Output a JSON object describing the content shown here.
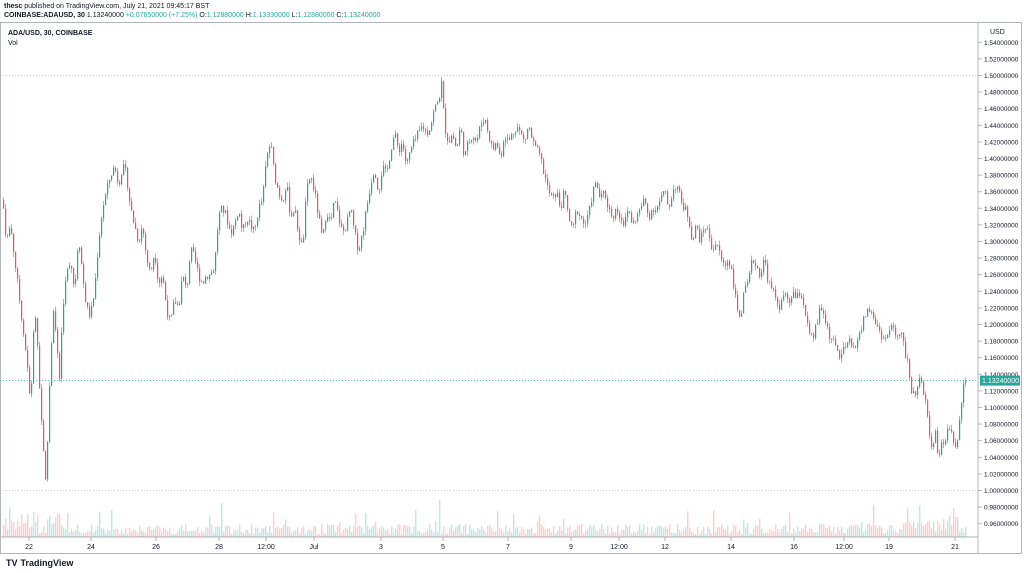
{
  "header": {
    "author": "thesc",
    "published_text": "published on TradingView.com, July 21, 2021 09:45:17 BST",
    "symbol": "COINBASE:ADAUSD, 30",
    "last": "1.13240000",
    "change": "+0.07650000 (+7.25%)",
    "o_label": "O:",
    "o_value": "1.12880000",
    "h_label": "H:",
    "h_value": "1.13330000",
    "l_label": "L:",
    "l_value": "1.12880000",
    "c_label": "C:",
    "c_value": "1.13240000"
  },
  "legend": {
    "pair": "ADA/USD, 30, COINBASE",
    "volume": "Vol"
  },
  "price_badge": "1.13240000",
  "currency": "USD",
  "footer": {
    "brand": "TradingView",
    "brand_mark": "TV"
  },
  "colors": {
    "up": "#26a69a",
    "down": "#ef5350",
    "grid": "#e0e3eb",
    "badge": "#26a69a"
  },
  "chart_data": {
    "type": "candlestick",
    "interval": "30",
    "yaxis_label": "USD",
    "ylim": [
      0.95,
      1.55
    ],
    "y_ticks": [
      "1.54000000",
      "1.52000000",
      "1.50000000",
      "1.48000000",
      "1.46000000",
      "1.44000000",
      "1.42000000",
      "1.40000000",
      "1.38000000",
      "1.36000000",
      "1.34000000",
      "1.32000000",
      "1.30000000",
      "1.28000000",
      "1.26000000",
      "1.24000000",
      "1.22000000",
      "1.20000000",
      "1.18000000",
      "1.16000000",
      "1.14000000",
      "1.12000000",
      "1.10000000",
      "1.08000000",
      "1.06000000",
      "1.04000000",
      "1.02000000",
      "1.00000000",
      "0.98000000",
      "0.96000000"
    ],
    "x_ticks": [
      "22",
      "24",
      "26",
      "28",
      "12:00",
      "Jul",
      "3",
      "5",
      "7",
      "9",
      "12:00",
      "12",
      "14",
      "16",
      "12:00",
      "19",
      "21"
    ],
    "horizontal_lines": [
      1.5,
      1.1324,
      1.0
    ],
    "path": [
      [
        0,
        1.37
      ],
      [
        3,
        1.34
      ],
      [
        6,
        1.3
      ],
      [
        10,
        1.32
      ],
      [
        14,
        1.28
      ],
      [
        18,
        1.24
      ],
      [
        22,
        1.2
      ],
      [
        26,
        1.16
      ],
      [
        30,
        1.1
      ],
      [
        34,
        1.22
      ],
      [
        37,
        1.18
      ],
      [
        40,
        1.1
      ],
      [
        43,
        1.05
      ],
      [
        45,
        1.01
      ],
      [
        47,
        1.06
      ],
      [
        50,
        1.16
      ],
      [
        53,
        1.22
      ],
      [
        56,
        1.18
      ],
      [
        59,
        1.13
      ],
      [
        62,
        1.22
      ],
      [
        66,
        1.26
      ],
      [
        70,
        1.28
      ],
      [
        74,
        1.24
      ],
      [
        78,
        1.31
      ],
      [
        82,
        1.26
      ],
      [
        86,
        1.22
      ],
      [
        90,
        1.21
      ],
      [
        94,
        1.24
      ],
      [
        98,
        1.3
      ],
      [
        102,
        1.34
      ],
      [
        106,
        1.36
      ],
      [
        110,
        1.38
      ],
      [
        114,
        1.39
      ],
      [
        118,
        1.37
      ],
      [
        122,
        1.39
      ],
      [
        126,
        1.38
      ],
      [
        130,
        1.34
      ],
      [
        134,
        1.32
      ],
      [
        138,
        1.3
      ],
      [
        142,
        1.32
      ],
      [
        146,
        1.28
      ],
      [
        150,
        1.26
      ],
      [
        154,
        1.29
      ],
      [
        158,
        1.25
      ],
      [
        162,
        1.26
      ],
      [
        166,
        1.22
      ],
      [
        170,
        1.2
      ],
      [
        174,
        1.23
      ],
      [
        178,
        1.22
      ],
      [
        182,
        1.26
      ],
      [
        186,
        1.24
      ],
      [
        190,
        1.29
      ],
      [
        194,
        1.28
      ],
      [
        198,
        1.26
      ],
      [
        202,
        1.25
      ],
      [
        206,
        1.26
      ],
      [
        210,
        1.26
      ],
      [
        214,
        1.27
      ],
      [
        218,
        1.33
      ],
      [
        222,
        1.34
      ],
      [
        226,
        1.33
      ],
      [
        230,
        1.31
      ],
      [
        234,
        1.32
      ],
      [
        238,
        1.34
      ],
      [
        242,
        1.31
      ],
      [
        246,
        1.33
      ],
      [
        250,
        1.32
      ],
      [
        254,
        1.31
      ],
      [
        258,
        1.34
      ],
      [
        262,
        1.35
      ],
      [
        266,
        1.4
      ],
      [
        270,
        1.42
      ],
      [
        274,
        1.38
      ],
      [
        278,
        1.36
      ],
      [
        282,
        1.35
      ],
      [
        286,
        1.37
      ],
      [
        290,
        1.33
      ],
      [
        294,
        1.34
      ],
      [
        298,
        1.31
      ],
      [
        302,
        1.29
      ],
      [
        306,
        1.36
      ],
      [
        310,
        1.38
      ],
      [
        314,
        1.36
      ],
      [
        318,
        1.33
      ],
      [
        322,
        1.3
      ],
      [
        326,
        1.34
      ],
      [
        330,
        1.32
      ],
      [
        334,
        1.35
      ],
      [
        338,
        1.33
      ],
      [
        342,
        1.31
      ],
      [
        346,
        1.32
      ],
      [
        350,
        1.34
      ],
      [
        354,
        1.31
      ],
      [
        358,
        1.29
      ],
      [
        362,
        1.31
      ],
      [
        366,
        1.34
      ],
      [
        370,
        1.37
      ],
      [
        374,
        1.39
      ],
      [
        378,
        1.36
      ],
      [
        382,
        1.39
      ],
      [
        386,
        1.38
      ],
      [
        390,
        1.41
      ],
      [
        394,
        1.43
      ],
      [
        398,
        1.41
      ],
      [
        402,
        1.42
      ],
      [
        406,
        1.39
      ],
      [
        410,
        1.41
      ],
      [
        414,
        1.42
      ],
      [
        418,
        1.43
      ],
      [
        422,
        1.44
      ],
      [
        426,
        1.43
      ],
      [
        430,
        1.44
      ],
      [
        434,
        1.46
      ],
      [
        438,
        1.47
      ],
      [
        441,
        1.49
      ],
      [
        444,
        1.44
      ],
      [
        448,
        1.42
      ],
      [
        452,
        1.43
      ],
      [
        456,
        1.41
      ],
      [
        460,
        1.44
      ],
      [
        464,
        1.4
      ],
      [
        468,
        1.42
      ],
      [
        472,
        1.43
      ],
      [
        476,
        1.42
      ],
      [
        480,
        1.44
      ],
      [
        484,
        1.45
      ],
      [
        488,
        1.43
      ],
      [
        492,
        1.41
      ],
      [
        496,
        1.42
      ],
      [
        500,
        1.4
      ],
      [
        504,
        1.43
      ],
      [
        508,
        1.42
      ],
      [
        512,
        1.43
      ],
      [
        516,
        1.44
      ],
      [
        520,
        1.43
      ],
      [
        524,
        1.42
      ],
      [
        528,
        1.44
      ],
      [
        532,
        1.42
      ],
      [
        536,
        1.41
      ],
      [
        540,
        1.4
      ],
      [
        544,
        1.38
      ],
      [
        548,
        1.36
      ],
      [
        552,
        1.35
      ],
      [
        556,
        1.36
      ],
      [
        560,
        1.34
      ],
      [
        564,
        1.36
      ],
      [
        568,
        1.33
      ],
      [
        572,
        1.31
      ],
      [
        576,
        1.34
      ],
      [
        580,
        1.33
      ],
      [
        584,
        1.32
      ],
      [
        588,
        1.33
      ],
      [
        592,
        1.36
      ],
      [
        596,
        1.37
      ],
      [
        600,
        1.35
      ],
      [
        604,
        1.36
      ],
      [
        608,
        1.34
      ],
      [
        612,
        1.33
      ],
      [
        616,
        1.34
      ],
      [
        620,
        1.33
      ],
      [
        624,
        1.32
      ],
      [
        628,
        1.34
      ],
      [
        632,
        1.32
      ],
      [
        636,
        1.33
      ],
      [
        640,
        1.34
      ],
      [
        644,
        1.35
      ],
      [
        648,
        1.33
      ],
      [
        652,
        1.34
      ],
      [
        656,
        1.34
      ],
      [
        660,
        1.35
      ],
      [
        664,
        1.36
      ],
      [
        668,
        1.34
      ],
      [
        672,
        1.36
      ],
      [
        676,
        1.37
      ],
      [
        680,
        1.35
      ],
      [
        684,
        1.34
      ],
      [
        688,
        1.33
      ],
      [
        692,
        1.3
      ],
      [
        696,
        1.32
      ],
      [
        700,
        1.3
      ],
      [
        704,
        1.32
      ],
      [
        708,
        1.31
      ],
      [
        712,
        1.29
      ],
      [
        716,
        1.3
      ],
      [
        720,
        1.28
      ],
      [
        724,
        1.27
      ],
      [
        728,
        1.28
      ],
      [
        732,
        1.26
      ],
      [
        736,
        1.22
      ],
      [
        740,
        1.21
      ],
      [
        744,
        1.24
      ],
      [
        748,
        1.25
      ],
      [
        752,
        1.28
      ],
      [
        756,
        1.27
      ],
      [
        760,
        1.26
      ],
      [
        764,
        1.28
      ],
      [
        768,
        1.25
      ],
      [
        772,
        1.24
      ],
      [
        776,
        1.23
      ],
      [
        780,
        1.22
      ],
      [
        784,
        1.24
      ],
      [
        788,
        1.22
      ],
      [
        792,
        1.24
      ],
      [
        796,
        1.23
      ],
      [
        800,
        1.24
      ],
      [
        804,
        1.22
      ],
      [
        808,
        1.19
      ],
      [
        812,
        1.18
      ],
      [
        816,
        1.2
      ],
      [
        820,
        1.22
      ],
      [
        824,
        1.21
      ],
      [
        828,
        1.19
      ],
      [
        832,
        1.18
      ],
      [
        836,
        1.17
      ],
      [
        840,
        1.16
      ],
      [
        844,
        1.17
      ],
      [
        848,
        1.18
      ],
      [
        852,
        1.17
      ],
      [
        856,
        1.18
      ],
      [
        860,
        1.19
      ],
      [
        864,
        1.21
      ],
      [
        868,
        1.22
      ],
      [
        872,
        1.21
      ],
      [
        876,
        1.2
      ],
      [
        880,
        1.19
      ],
      [
        884,
        1.18
      ],
      [
        888,
        1.19
      ],
      [
        892,
        1.2
      ],
      [
        896,
        1.18
      ],
      [
        900,
        1.19
      ],
      [
        904,
        1.17
      ],
      [
        908,
        1.15
      ],
      [
        911,
        1.12
      ],
      [
        915,
        1.12
      ],
      [
        919,
        1.13
      ],
      [
        923,
        1.12
      ],
      [
        926,
        1.1
      ],
      [
        929,
        1.06
      ],
      [
        932,
        1.05
      ],
      [
        935,
        1.07
      ],
      [
        938,
        1.04
      ],
      [
        941,
        1.06
      ],
      [
        944,
        1.05
      ],
      [
        947,
        1.07
      ],
      [
        950,
        1.08
      ],
      [
        953,
        1.06
      ],
      [
        956,
        1.05
      ],
      [
        959,
        1.09
      ],
      [
        962,
        1.12
      ],
      [
        965,
        1.14
      ],
      [
        966,
        1.13
      ]
    ],
    "last_value": 1.1324
  }
}
